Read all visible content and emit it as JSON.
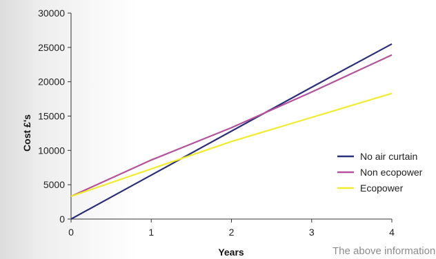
{
  "chart_data": {
    "type": "line",
    "title": "",
    "xlabel": "Years",
    "ylabel": "Cost £'s",
    "x": [
      0,
      1,
      2,
      3,
      4
    ],
    "xlim": [
      0,
      4
    ],
    "ylim": [
      0,
      30000
    ],
    "x_ticks": [
      "0",
      "1",
      "2",
      "3",
      "4"
    ],
    "y_ticks": [
      "0",
      "5000",
      "10000",
      "15000",
      "20000",
      "25000",
      "30000"
    ],
    "grid": false,
    "legend_position": "right",
    "series": [
      {
        "name": "No air curtain",
        "color": "#2b2f7a",
        "values": [
          0,
          6400,
          12800,
          19200,
          25500
        ]
      },
      {
        "name": "Non ecopower",
        "color": "#b5519c",
        "values": [
          3300,
          8600,
          13300,
          18500,
          23900
        ]
      },
      {
        "name": "Ecopower",
        "color": "#f0ec2a",
        "values": [
          3300,
          7300,
          11300,
          14800,
          18300
        ]
      }
    ]
  },
  "footnote": "The above information"
}
